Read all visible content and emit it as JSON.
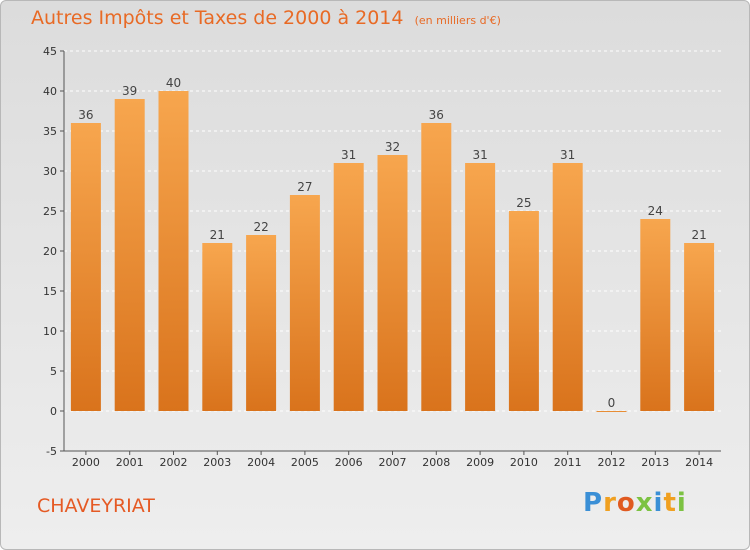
{
  "chart_data": {
    "type": "bar",
    "title": "Autres Impôts et Taxes de 2000 à 2014",
    "unit_note": "(en milliers d'€)",
    "categories": [
      "2000",
      "2001",
      "2002",
      "2003",
      "2004",
      "2005",
      "2006",
      "2007",
      "2008",
      "2009",
      "2010",
      "2011",
      "2012",
      "2013",
      "2014"
    ],
    "values": [
      36,
      39,
      40,
      21,
      22,
      27,
      31,
      32,
      36,
      31,
      25,
      31,
      0,
      24,
      21
    ],
    "ylim": [
      -5,
      45
    ],
    "yticks": [
      -5,
      0,
      5,
      10,
      15,
      20,
      25,
      30,
      35,
      40,
      45
    ],
    "grid": true,
    "xlabel": "",
    "ylabel": "",
    "bar_color_top": "#f7a64e",
    "bar_color_bottom": "#d9731c"
  },
  "commune": "CHAVEYRIAT",
  "logo": {
    "letters": [
      "P",
      "r",
      "o",
      "x",
      "i",
      "t",
      "i"
    ],
    "colors": [
      "#3a8fd6",
      "#f0a020",
      "#e05a20",
      "#7cc242",
      "#3a8fd6",
      "#f0a020",
      "#7cc242"
    ]
  }
}
